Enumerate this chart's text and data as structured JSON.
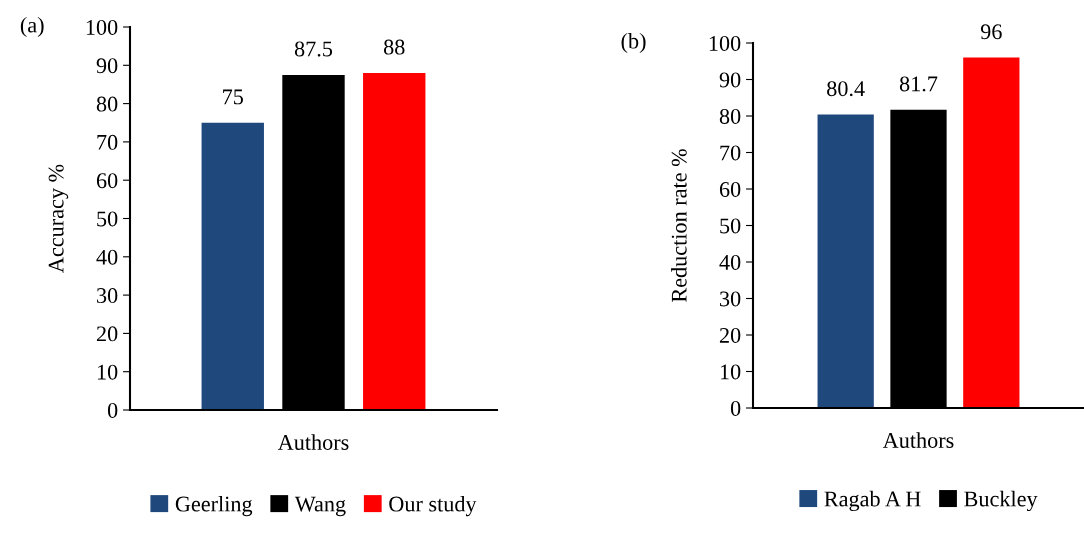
{
  "chart_data": [
    {
      "type": "bar",
      "categories": [
        null
      ],
      "xlabel": "Authors",
      "ylabel": "Accuracy %",
      "ylim": [
        0,
        100
      ],
      "yticks": [
        0,
        10,
        20,
        30,
        40,
        50,
        60,
        70,
        80,
        90,
        100
      ],
      "data_labels": true,
      "legend": "bottom",
      "grid": false,
      "annotations": [
        "(a)"
      ],
      "series": [
        {
          "name": "Geerling",
          "color": "#1f497d",
          "values": [
            75
          ]
        },
        {
          "name": "Wang",
          "color": "#000000",
          "values": [
            87.5
          ]
        },
        {
          "name": "Our study",
          "color": "#ff0000",
          "values": [
            88
          ]
        }
      ]
    },
    {
      "type": "bar",
      "categories": [
        null
      ],
      "xlabel": "Authors",
      "ylabel": "Reduction rate %",
      "ylim": [
        0,
        100
      ],
      "yticks": [
        0,
        10,
        20,
        30,
        40,
        50,
        60,
        70,
        80,
        90,
        100
      ],
      "data_labels": true,
      "legend": "bottom",
      "grid": false,
      "annotations": [
        "(b)"
      ],
      "series": [
        {
          "name": "Ragab A H",
          "color": "#1f497d",
          "values": [
            80.4
          ]
        },
        {
          "name": "Buckley",
          "color": "#000000",
          "values": [
            81.7
          ]
        },
        {
          "color": "#ff0000",
          "values": [
            96
          ]
        }
      ]
    }
  ]
}
